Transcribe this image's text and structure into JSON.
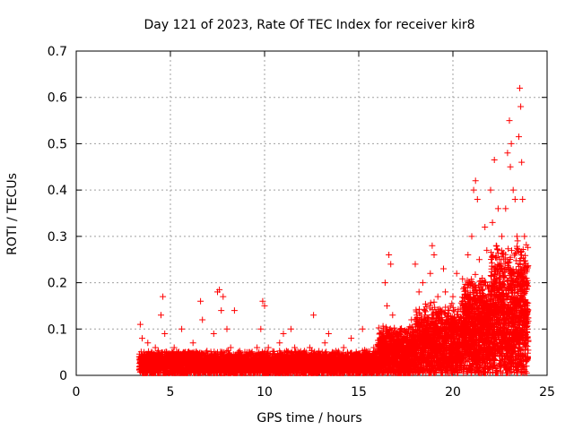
{
  "chart_data": {
    "type": "scatter",
    "title": "Day 121 of 2023, Rate Of TEC Index for receiver kir8",
    "xlabel": "GPS time / hours",
    "ylabel": "ROTI / TECUs",
    "xlim": [
      0,
      25
    ],
    "ylim": [
      0,
      0.7
    ],
    "x_ticks": [
      "0",
      "5",
      "10",
      "15",
      "20",
      "25"
    ],
    "y_ticks": [
      "0",
      "0.1",
      "0.2",
      "0.3",
      "0.4",
      "0.5",
      "0.6",
      "0.7"
    ],
    "grid": true,
    "marker": "+",
    "marker_color": "#ff0000",
    "series": [
      {
        "points": [
          [
            3.4,
            0.11
          ],
          [
            3.5,
            0.08
          ],
          [
            3.6,
            0.05
          ],
          [
            3.7,
            0.03
          ],
          [
            3.8,
            0.07
          ],
          [
            4.0,
            0.04
          ],
          [
            4.2,
            0.06
          ],
          [
            4.4,
            0.03
          ],
          [
            4.5,
            0.13
          ],
          [
            4.6,
            0.17
          ],
          [
            4.7,
            0.09
          ],
          [
            4.8,
            0.05
          ],
          [
            5.0,
            0.03
          ],
          [
            5.2,
            0.06
          ],
          [
            5.4,
            0.04
          ],
          [
            5.6,
            0.1
          ],
          [
            5.8,
            0.05
          ],
          [
            6.0,
            0.03
          ],
          [
            6.2,
            0.07
          ],
          [
            6.4,
            0.04
          ],
          [
            6.6,
            0.16
          ],
          [
            6.7,
            0.12
          ],
          [
            6.9,
            0.05
          ],
          [
            7.1,
            0.04
          ],
          [
            7.3,
            0.09
          ],
          [
            7.5,
            0.18
          ],
          [
            7.6,
            0.185
          ],
          [
            7.7,
            0.14
          ],
          [
            7.8,
            0.17
          ],
          [
            8.0,
            0.1
          ],
          [
            8.2,
            0.06
          ],
          [
            8.4,
            0.14
          ],
          [
            8.6,
            0.05
          ],
          [
            8.8,
            0.04
          ],
          [
            9.0,
            0.03
          ],
          [
            9.2,
            0.05
          ],
          [
            9.4,
            0.04
          ],
          [
            9.6,
            0.06
          ],
          [
            9.8,
            0.1
          ],
          [
            9.9,
            0.16
          ],
          [
            10.0,
            0.15
          ],
          [
            10.2,
            0.06
          ],
          [
            10.4,
            0.04
          ],
          [
            10.6,
            0.03
          ],
          [
            10.8,
            0.07
          ],
          [
            11.0,
            0.09
          ],
          [
            11.2,
            0.05
          ],
          [
            11.4,
            0.1
          ],
          [
            11.6,
            0.06
          ],
          [
            11.8,
            0.04
          ],
          [
            12.0,
            0.03
          ],
          [
            12.2,
            0.05
          ],
          [
            12.4,
            0.06
          ],
          [
            12.6,
            0.13
          ],
          [
            12.8,
            0.04
          ],
          [
            13.0,
            0.03
          ],
          [
            13.2,
            0.07
          ],
          [
            13.4,
            0.09
          ],
          [
            13.6,
            0.05
          ],
          [
            13.8,
            0.04
          ],
          [
            14.0,
            0.03
          ],
          [
            14.2,
            0.06
          ],
          [
            14.4,
            0.05
          ],
          [
            14.6,
            0.08
          ],
          [
            14.8,
            0.04
          ],
          [
            15.0,
            0.03
          ],
          [
            15.2,
            0.1
          ],
          [
            15.4,
            0.05
          ],
          [
            15.6,
            0.04
          ],
          [
            15.8,
            0.06
          ],
          [
            16.0,
            0.05
          ],
          [
            16.2,
            0.09
          ],
          [
            16.4,
            0.2
          ],
          [
            16.5,
            0.15
          ],
          [
            16.6,
            0.26
          ],
          [
            16.7,
            0.24
          ],
          [
            16.8,
            0.13
          ],
          [
            17.0,
            0.07
          ],
          [
            17.2,
            0.1
          ],
          [
            17.4,
            0.06
          ],
          [
            17.6,
            0.09
          ],
          [
            17.8,
            0.12
          ],
          [
            18.0,
            0.24
          ],
          [
            18.2,
            0.18
          ],
          [
            18.4,
            0.2
          ],
          [
            18.5,
            0.14
          ],
          [
            18.6,
            0.11
          ],
          [
            18.8,
            0.22
          ],
          [
            18.9,
            0.28
          ],
          [
            19.0,
            0.26
          ],
          [
            19.2,
            0.17
          ],
          [
            19.4,
            0.12
          ],
          [
            19.5,
            0.23
          ],
          [
            19.6,
            0.18
          ],
          [
            19.8,
            0.14
          ],
          [
            20.0,
            0.17
          ],
          [
            20.2,
            0.22
          ],
          [
            20.3,
            0.12
          ],
          [
            20.5,
            0.16
          ],
          [
            20.6,
            0.19
          ],
          [
            20.8,
            0.26
          ],
          [
            20.9,
            0.2
          ],
          [
            21.0,
            0.3
          ],
          [
            21.1,
            0.4
          ],
          [
            21.2,
            0.42
          ],
          [
            21.3,
            0.38
          ],
          [
            21.4,
            0.25
          ],
          [
            21.6,
            0.2
          ],
          [
            21.7,
            0.32
          ],
          [
            21.8,
            0.27
          ],
          [
            22.0,
            0.4
          ],
          [
            22.1,
            0.33
          ],
          [
            22.2,
            0.465
          ],
          [
            22.3,
            0.28
          ],
          [
            22.4,
            0.36
          ],
          [
            22.5,
            0.22
          ],
          [
            22.6,
            0.3
          ],
          [
            22.7,
            0.25
          ],
          [
            22.8,
            0.36
          ],
          [
            22.9,
            0.48
          ],
          [
            23.0,
            0.55
          ],
          [
            23.05,
            0.45
          ],
          [
            23.1,
            0.5
          ],
          [
            23.2,
            0.4
          ],
          [
            23.3,
            0.38
          ],
          [
            23.4,
            0.3
          ],
          [
            23.5,
            0.515
          ],
          [
            23.55,
            0.62
          ],
          [
            23.6,
            0.58
          ],
          [
            23.65,
            0.46
          ],
          [
            23.7,
            0.38
          ],
          [
            23.8,
            0.3
          ],
          [
            23.9,
            0.2
          ]
        ]
      }
    ]
  }
}
